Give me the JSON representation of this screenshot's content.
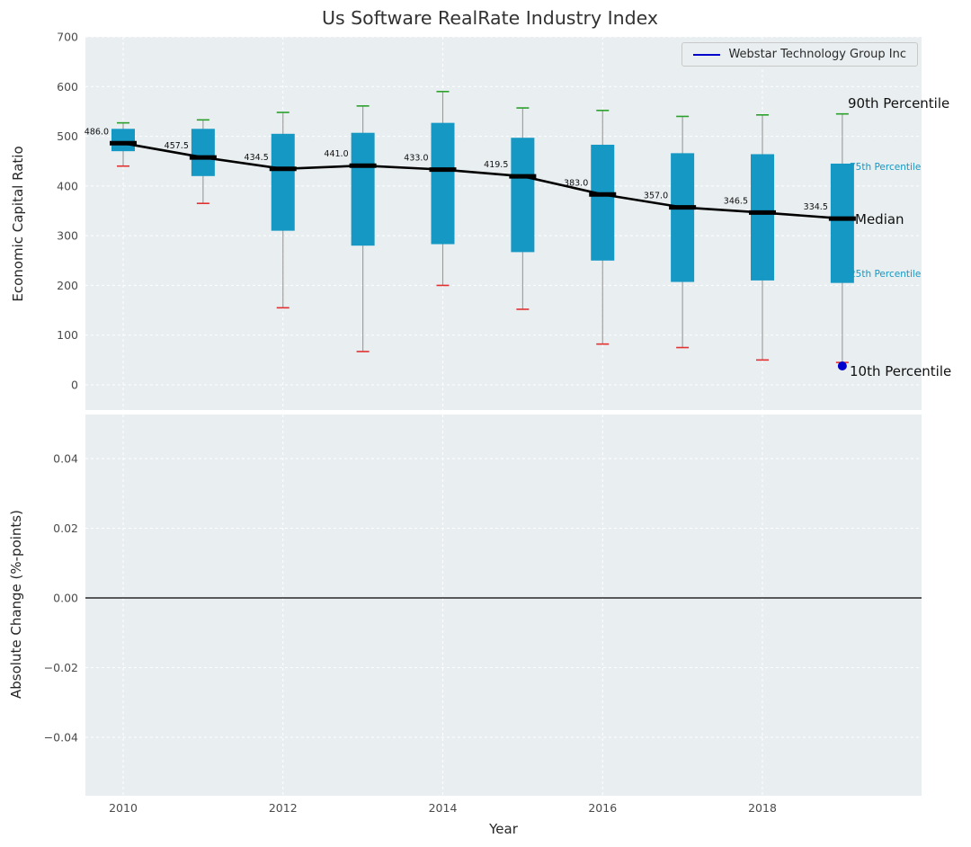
{
  "title": "Us Software RealRate Industry Index",
  "axes": {
    "top_ylabel": "Economic Capital Ratio",
    "bottom_ylabel": "Absolute Change (%-points)",
    "xlabel": "Year"
  },
  "legend": {
    "label": "Webstar Technology Group Inc"
  },
  "annotations": {
    "p90": "90th Percentile",
    "p75": "75th Percentile",
    "median": "Median",
    "p25": "25th Percentile",
    "p10": "10th Percentile"
  },
  "colors": {
    "box": "#1598c4",
    "median": "#000000",
    "whisker": "#999999",
    "cap_high": "#2ba02b",
    "cap_low": "#e33030",
    "company": "#0000cc",
    "axes_bg": "#e9eef0",
    "grid": "#ffffff",
    "tick_text": "#4b4b4b"
  },
  "chart_data": {
    "type": "boxplot",
    "title": "Us Software RealRate Industry Index",
    "xlabel": "Year",
    "ylabel_top": "Economic Capital Ratio",
    "ylabel_bottom": "Absolute Change (%-points)",
    "years": [
      2010,
      2011,
      2012,
      2013,
      2014,
      2015,
      2016,
      2017,
      2018,
      2019
    ],
    "series_percentiles": [
      {
        "year": 2010,
        "p10": 440,
        "p25": 470,
        "median": 486.0,
        "p75": 515,
        "p90": 527
      },
      {
        "year": 2011,
        "p10": 365,
        "p25": 420,
        "median": 457.5,
        "p75": 515,
        "p90": 533
      },
      {
        "year": 2012,
        "p10": 155,
        "p25": 310,
        "median": 434.5,
        "p75": 505,
        "p90": 548
      },
      {
        "year": 2013,
        "p10": 67,
        "p25": 280,
        "median": 441.0,
        "p75": 507,
        "p90": 561
      },
      {
        "year": 2014,
        "p10": 200,
        "p25": 283,
        "median": 433.0,
        "p75": 527,
        "p90": 590
      },
      {
        "year": 2015,
        "p10": 152,
        "p25": 267,
        "median": 419.5,
        "p75": 497,
        "p90": 557
      },
      {
        "year": 2016,
        "p10": 82,
        "p25": 250,
        "median": 383.0,
        "p75": 483,
        "p90": 552
      },
      {
        "year": 2017,
        "p10": 75,
        "p25": 207,
        "median": 357.0,
        "p75": 466,
        "p90": 540
      },
      {
        "year": 2018,
        "p10": 50,
        "p25": 210,
        "median": 346.5,
        "p75": 464,
        "p90": 543
      },
      {
        "year": 2019,
        "p10": 45,
        "p25": 205,
        "median": 334.5,
        "p75": 445,
        "p90": 545
      }
    ],
    "median_labels": [
      "486.0",
      "457.5",
      "434.5",
      "441.0",
      "433.0",
      "419.5",
      "383.0",
      "357.0",
      "346.5",
      "334.5"
    ],
    "top_axis": {
      "ylim": [
        0,
        700
      ],
      "yticks": [
        700,
        600,
        500,
        400,
        300,
        200,
        100,
        0
      ],
      "ytick_labels": [
        "700",
        "600",
        "500",
        "400",
        "300",
        "200",
        "100",
        "0"
      ]
    },
    "bottom_axis": {
      "ylim": [
        -0.057,
        0.053
      ],
      "yticks": [
        0.04,
        0.02,
        0.0,
        -0.02,
        -0.04
      ],
      "ytick_labels": [
        "0.04",
        "0.02",
        "0.00",
        "−0.02",
        "−0.04"
      ],
      "zero_line": 0.0
    },
    "xticks": [
      2010,
      2012,
      2014,
      2016,
      2018
    ],
    "xtick_labels": [
      "2010",
      "2012",
      "2014",
      "2016",
      "2018"
    ],
    "company_series": {
      "name": "Webstar Technology Group Inc",
      "points": [
        {
          "year": 2019,
          "value": 38
        }
      ]
    }
  }
}
